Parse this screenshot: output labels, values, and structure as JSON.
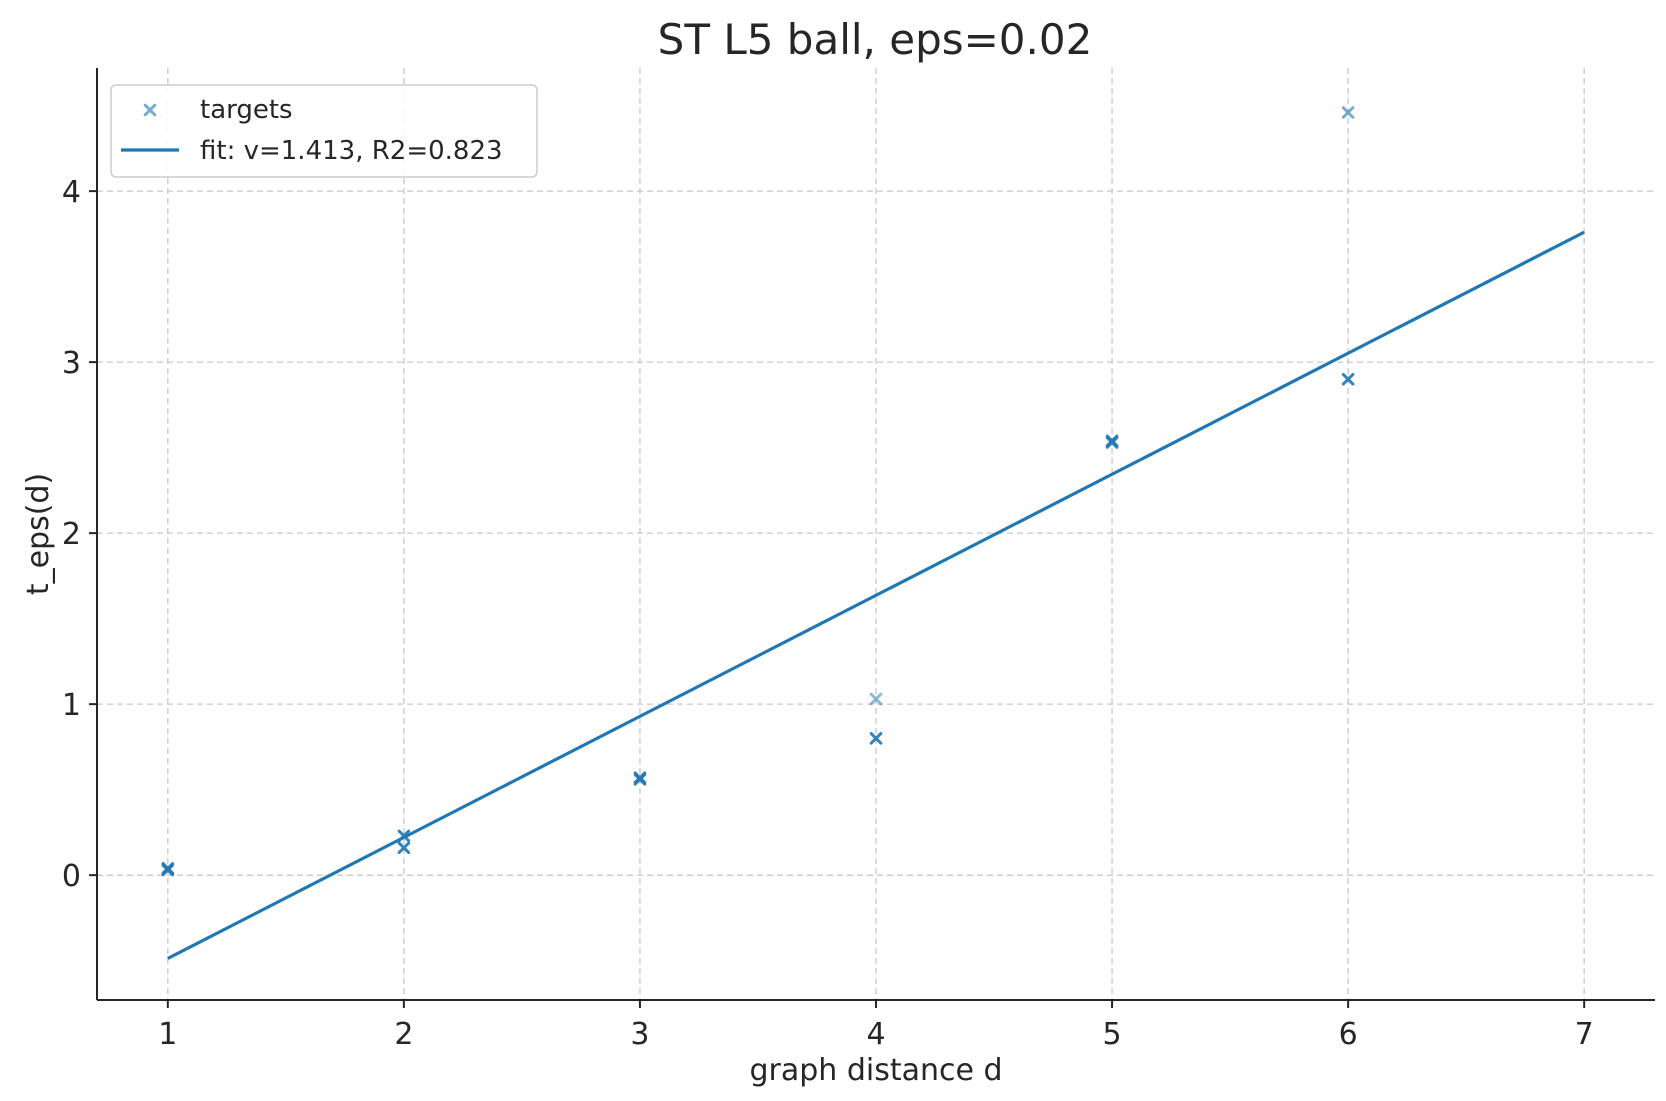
{
  "chart_data": {
    "type": "scatter",
    "title": "ST L5 ball, eps=0.02",
    "xlabel": "graph distance d",
    "ylabel": "t_eps(d)",
    "xlim": [
      0.7,
      7.3
    ],
    "ylim": [
      -0.73,
      4.72
    ],
    "xticks": [
      1,
      2,
      3,
      4,
      5,
      6,
      7
    ],
    "yticks": [
      0,
      1,
      2,
      3,
      4
    ],
    "grid": true,
    "legend_position": "top-left",
    "series": [
      {
        "name": "targets",
        "kind": "scatter",
        "marker": "x",
        "color": "#1f77b4",
        "points": [
          {
            "x": 1,
            "y": 0.03,
            "alpha": 0.9
          },
          {
            "x": 1,
            "y": 0.04,
            "alpha": 0.9
          },
          {
            "x": 2,
            "y": 0.16,
            "alpha": 0.9
          },
          {
            "x": 2,
            "y": 0.23,
            "alpha": 0.9
          },
          {
            "x": 3,
            "y": 0.56,
            "alpha": 0.9
          },
          {
            "x": 3,
            "y": 0.57,
            "alpha": 0.9
          },
          {
            "x": 4,
            "y": 0.8,
            "alpha": 0.9
          },
          {
            "x": 4,
            "y": 1.03,
            "alpha": 0.5
          },
          {
            "x": 5,
            "y": 2.53,
            "alpha": 0.9
          },
          {
            "x": 5,
            "y": 2.54,
            "alpha": 0.9
          },
          {
            "x": 6,
            "y": 2.9,
            "alpha": 0.9
          },
          {
            "x": 6,
            "y": 4.46,
            "alpha": 0.6
          }
        ]
      },
      {
        "name": "fit: v=1.413, R2=0.823",
        "kind": "line",
        "color": "#1f77b4",
        "x": [
          1,
          7
        ],
        "y": [
          -0.487,
          3.76
        ]
      }
    ]
  }
}
